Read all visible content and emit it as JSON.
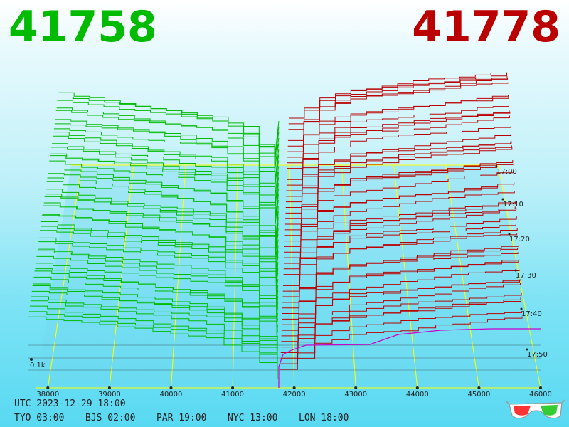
{
  "header": {
    "bid": "41758",
    "ask": "41778"
  },
  "footer": {
    "utc": "UTC 2023-12-29 18:00",
    "zones": [
      {
        "label": "TYO 03:00"
      },
      {
        "label": "BJS 02:00"
      },
      {
        "label": "PAR 19:00"
      },
      {
        "label": "NYC 13:00"
      },
      {
        "label": "LON 18:00"
      }
    ]
  },
  "colors": {
    "bid": "#00bb00",
    "ask": "#bb0000",
    "grid": "#ffff00",
    "latest": "#cc00cc"
  },
  "chart_data": {
    "type": "line",
    "title": "",
    "xlabel": "",
    "ylabel": "",
    "x_ticks": [
      38000,
      39000,
      40000,
      41000,
      42000,
      43000,
      44000,
      45000,
      46000
    ],
    "x_tick_labels": [
      "38000",
      "39000",
      "40000",
      "41000",
      "42000",
      "43000",
      "44000",
      "45000",
      "46000"
    ],
    "xlim": [
      37800,
      46000
    ],
    "time_ticks": [
      "17:00",
      "17:10",
      "17:20",
      "17:30",
      "17:40",
      "17:50"
    ],
    "depth_tick": "0.1k",
    "mid_price": 41768,
    "series": [
      {
        "side": "bid",
        "price_range": [
          37800,
          41758
        ]
      },
      {
        "side": "ask",
        "price_range": [
          41778,
          46000
        ]
      }
    ]
  },
  "icons": {
    "glasses": "3d-glasses-icon"
  }
}
